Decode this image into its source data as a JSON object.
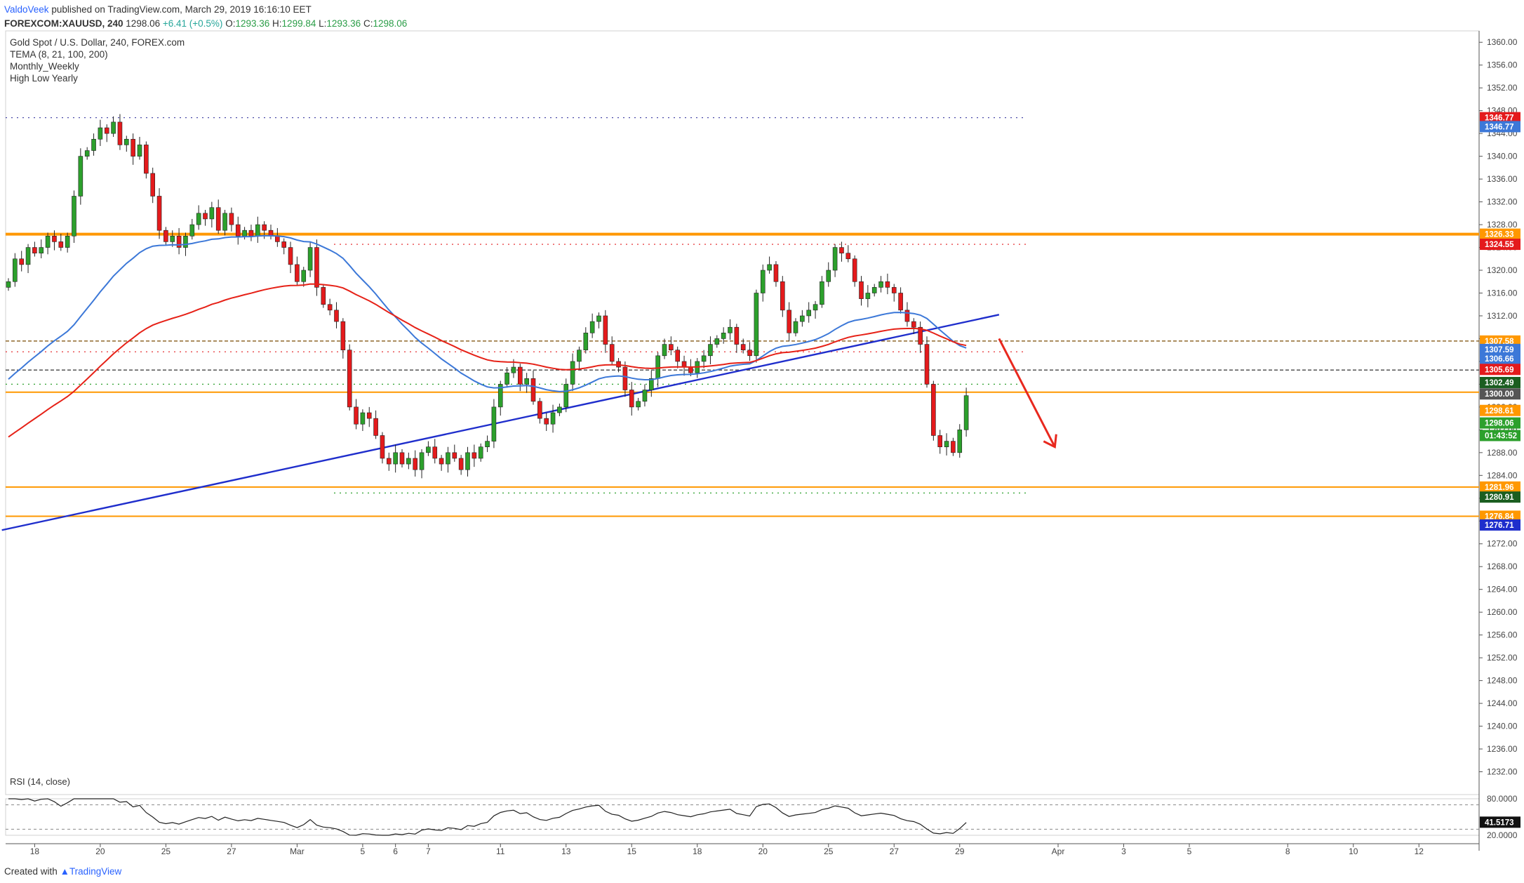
{
  "header": {
    "author": "ValdoVeek",
    "published": " published on TradingView.com, March 29, 2019 16:16:10 EET",
    "symbol": "FOREXCOM:XAUUSD, 240",
    "last": "1298.06",
    "change": "+6.41 (+0.5%)",
    "o_label": "O:",
    "o": "1293.36",
    "h_label": "H:",
    "h": "1299.84",
    "l_label": "L:",
    "l": "1293.36",
    "c_label": "C:",
    "c": "1298.06"
  },
  "legend": {
    "title": "Gold Spot / U.S. Dollar, 240, FOREX.com",
    "line2": "TEMA (8, 21, 100, 200)",
    "line3": "Monthly_Weekly",
    "line4": "High Low Yearly"
  },
  "rsi_label": "RSI (14, close)",
  "footer": {
    "created": "Created with",
    "brand": "TradingView"
  },
  "colors": {
    "up": "#2ca02c",
    "down": "#e41a1c",
    "ema_blue": "#3c78d8",
    "ema_red": "#e62117",
    "trend": "#1f2ecc",
    "orange": "#ff9800",
    "arrow": "#e8281e"
  },
  "chart_data": {
    "type": "candlestick",
    "title": "Gold Spot / U.S. Dollar, 240, FOREX.com",
    "ylim": [
      1228,
      1362
    ],
    "y_ticks": [
      "1360.00",
      "1356.00",
      "1352.00",
      "1348.00",
      "1344.00",
      "1340.00",
      "1336.00",
      "1332.00",
      "1328.00",
      "1324.00",
      "1320.00",
      "1316.00",
      "1312.00",
      "1308.00",
      "1304.00",
      "1300.00",
      "1296.00",
      "1292.00",
      "1288.00",
      "1284.00",
      "1280.00",
      "1276.00",
      "1272.00",
      "1268.00",
      "1264.00",
      "1260.00",
      "1256.00",
      "1252.00",
      "1248.00",
      "1244.00",
      "1240.00",
      "1236.00",
      "1232.00"
    ],
    "x_ticks": [
      {
        "label": "18",
        "slot": 4
      },
      {
        "label": "20",
        "slot": 14
      },
      {
        "label": "25",
        "slot": 24
      },
      {
        "label": "27",
        "slot": 34
      },
      {
        "label": "Mar",
        "slot": 44
      },
      {
        "label": "5",
        "slot": 54
      },
      {
        "label": "6",
        "slot": 59
      },
      {
        "label": "7",
        "slot": 64
      },
      {
        "label": "11",
        "slot": 75
      },
      {
        "label": "13",
        "slot": 85
      },
      {
        "label": "15",
        "slot": 95
      },
      {
        "label": "18",
        "slot": 105
      },
      {
        "label": "20",
        "slot": 115
      },
      {
        "label": "25",
        "slot": 125
      },
      {
        "label": "27",
        "slot": 135
      },
      {
        "label": "29",
        "slot": 145
      },
      {
        "label": "Apr",
        "slot": 160
      },
      {
        "label": "3",
        "slot": 170
      },
      {
        "label": "5",
        "slot": 180
      },
      {
        "label": "8",
        "slot": 195
      },
      {
        "label": "10",
        "slot": 205
      },
      {
        "label": "12",
        "slot": 215
      }
    ],
    "closes": [
      1318,
      1322,
      1321,
      1324,
      1323,
      1324,
      1326,
      1325,
      1324,
      1326,
      1333,
      1340,
      1341,
      1343,
      1345,
      1344,
      1346,
      1342,
      1343,
      1340,
      1342,
      1337,
      1333,
      1327,
      1325,
      1326,
      1324,
      1326,
      1328,
      1330,
      1329,
      1331,
      1327,
      1330,
      1328,
      1326,
      1327,
      1326,
      1328,
      1327,
      1326,
      1325,
      1324,
      1321,
      1318,
      1320,
      1324,
      1317,
      1314,
      1313,
      1311,
      1306,
      1296,
      1293,
      1295,
      1294,
      1291,
      1287,
      1286,
      1288,
      1286,
      1287,
      1285,
      1288,
      1289,
      1287,
      1286,
      1288,
      1287,
      1285,
      1288,
      1287,
      1289,
      1290,
      1296,
      1300,
      1302,
      1303,
      1300,
      1301,
      1297,
      1294,
      1293,
      1295,
      1296,
      1300,
      1304,
      1306,
      1309,
      1311,
      1312,
      1307,
      1304,
      1303,
      1299,
      1296,
      1297,
      1299,
      1301,
      1305,
      1307,
      1306,
      1304,
      1303,
      1302,
      1304,
      1305,
      1307,
      1308,
      1309,
      1310,
      1307,
      1306,
      1305,
      1316,
      1320,
      1321,
      1318,
      1313,
      1309,
      1311,
      1312,
      1313,
      1314,
      1318,
      1320,
      1324,
      1323,
      1322,
      1318,
      1315,
      1316,
      1317,
      1318,
      1317,
      1316,
      1313,
      1311,
      1310,
      1307,
      1300,
      1291,
      1289,
      1290,
      1288,
      1292,
      1298
    ],
    "rsi": {
      "levels": [
        70,
        30
      ],
      "ylim": [
        20,
        80
      ],
      "last": "41.5173",
      "ticks": [
        "80.0000",
        "20.0000"
      ]
    },
    "horizontal_levels": [
      {
        "value": 1346.77,
        "style": "dotted"
      },
      {
        "value": 1326.33,
        "style": "solid-thick"
      },
      {
        "value": 1324.55,
        "style": "dotted"
      },
      {
        "value": 1307.58,
        "style": "dashed"
      },
      {
        "value": 1305.69,
        "style": "dotted"
      },
      {
        "value": 1302.49,
        "style": "dashed"
      },
      {
        "value": 1300.0,
        "style": "dotted"
      },
      {
        "value": 1298.61,
        "style": "solid"
      },
      {
        "value": 1281.96,
        "style": "solid"
      },
      {
        "value": 1280.91,
        "style": "dotted"
      },
      {
        "value": 1276.84,
        "style": "solid"
      }
    ],
    "price_tags": [
      {
        "value": 1346.77,
        "label": "1346.77",
        "color": "#e41a1c"
      },
      {
        "value": 1345.2,
        "label": "1346.77",
        "color": "#3c78d8"
      },
      {
        "value": 1326.33,
        "label": "1326.33",
        "color": "#ff9800"
      },
      {
        "value": 1324.55,
        "label": "1324.55",
        "color": "#e41a1c"
      },
      {
        "value": 1307.58,
        "label": "1307.58",
        "color": "#ff9800"
      },
      {
        "value": 1306.1,
        "label": "1307.59",
        "color": "#3c78d8"
      },
      {
        "value": 1304.5,
        "label": "1306.66",
        "color": "#3c78d8"
      },
      {
        "value": 1302.6,
        "label": "1305.69",
        "color": "#e41a1c"
      },
      {
        "value": 1300.3,
        "label": "1302.49",
        "color": "#1b5e20"
      },
      {
        "value": 1298.3,
        "label": "1300.00",
        "color": "#555555"
      },
      {
        "value": 1295.4,
        "label": "1298.61",
        "color": "#ff9800"
      },
      {
        "value": 1293.2,
        "label": "1298.06",
        "color": "#2ca02c"
      },
      {
        "value": 1291.0,
        "label": "01:43:52",
        "color": "#2ca02c"
      },
      {
        "value": 1281.96,
        "label": "1281.96",
        "color": "#ff9800"
      },
      {
        "value": 1280.2,
        "label": "1280.91",
        "color": "#1b5e20"
      },
      {
        "value": 1276.84,
        "label": "1276.84",
        "color": "#ff9800"
      },
      {
        "value": 1275.3,
        "label": "1276.71",
        "color": "#1f2ecc"
      }
    ]
  }
}
